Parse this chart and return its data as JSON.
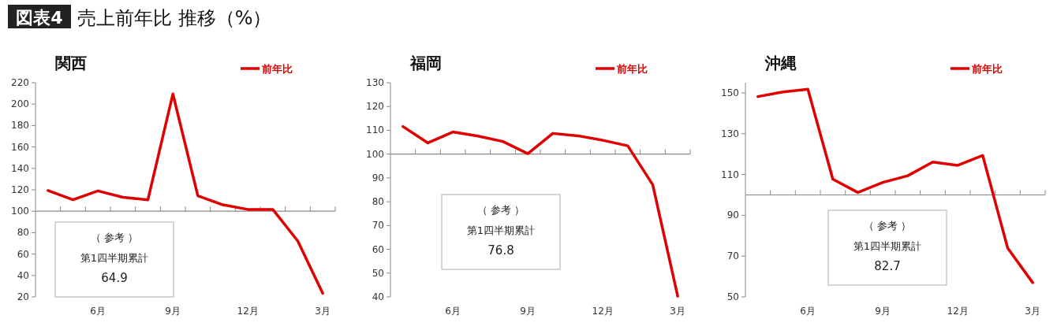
{
  "chart_data": [
    {
      "type": "other",
      "title": "売上前年比 推移（%）",
      "annotations": [
        "図表4"
      ]
    },
    {
      "type": "line",
      "title": "関西",
      "categories": [
        null,
        null,
        "6月",
        null,
        null,
        "9月",
        null,
        null,
        "12月",
        null,
        null,
        "3月"
      ],
      "series": [
        {
          "name": "前年比",
          "color": "#e00000",
          "values": [
            119.3,
            110.7,
            119,
            113,
            110.7,
            209.5,
            114.4,
            106,
            101.7,
            101.7,
            72.2,
            23.4
          ]
        }
      ],
      "ylim": [
        20,
        220
      ],
      "yticks": [
        20,
        40,
        60,
        80,
        100,
        120,
        140,
        160,
        180,
        200,
        220
      ],
      "ref_lines": [
        {
          "axis": "y",
          "value": 100,
          "color": "#888888"
        }
      ],
      "legend": "top right",
      "grid": false,
      "marker": "none",
      "annotations": [
        "（ 参考 ）",
        "第1四半期累計",
        "64.9"
      ]
    },
    {
      "type": "line",
      "title": "福岡",
      "categories": [
        null,
        null,
        "6月",
        null,
        null,
        "9月",
        null,
        null,
        "12月",
        null,
        null,
        "3月"
      ],
      "series": [
        {
          "name": "前年比",
          "color": "#e00000",
          "values": [
            111.6,
            104.7,
            109.3,
            107.6,
            105.3,
            100.2,
            108.7,
            107.7,
            105.8,
            103.5,
            87.1,
            40.3
          ]
        }
      ],
      "ylim": [
        40,
        130
      ],
      "yticks": [
        40,
        50,
        60,
        70,
        80,
        90,
        100,
        110,
        120,
        130
      ],
      "ref_lines": [
        {
          "axis": "y",
          "value": 100,
          "color": "#888888"
        }
      ],
      "legend": "top right",
      "grid": false,
      "marker": "none",
      "annotations": [
        "（ 参考 ）",
        "第1四半期累計",
        "76.8"
      ]
    },
    {
      "type": "line",
      "title": "沖縄",
      "categories": [
        null,
        null,
        "6月",
        null,
        null,
        "9月",
        null,
        null,
        "12月",
        null,
        null,
        "3月"
      ],
      "series": [
        {
          "name": "前年比",
          "color": "#e00000",
          "values": [
            148.2,
            150.5,
            151.8,
            107.7,
            101.2,
            106.1,
            109.4,
            116.1,
            114.5,
            119.3,
            73.9,
            57.0
          ]
        }
      ],
      "ylim": [
        50,
        155
      ],
      "yticks": [
        50,
        70,
        90,
        110,
        130,
        150
      ],
      "ref_lines": [
        {
          "axis": "y",
          "value": 100,
          "color": "#888888"
        }
      ],
      "legend": "top right",
      "grid": false,
      "marker": "none",
      "annotations": [
        "（ 参考 ）",
        "第1四半期累計",
        "82.7"
      ]
    }
  ]
}
